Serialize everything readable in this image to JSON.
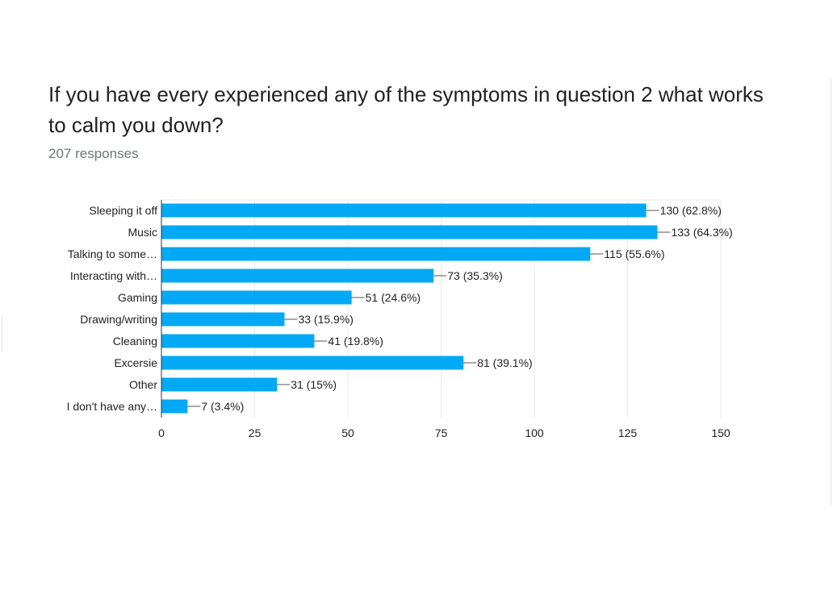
{
  "question": {
    "title": "If you have every experienced any of the symptoms in question 2 what works to calm you down?",
    "responses": "207 responses"
  },
  "colors": {
    "bar": "#03a9f4",
    "grid": "#e8e8e8",
    "axis": "#333333",
    "text": "#222222"
  },
  "chart_data": {
    "type": "bar",
    "orientation": "horizontal",
    "categories": [
      "Sleeping it off",
      "Music",
      "Talking to some…",
      "Interacting with…",
      "Gaming",
      "Drawing/writing",
      "Cleaning",
      "Excersie",
      "Other",
      "I don't have any…"
    ],
    "values": [
      130,
      133,
      115,
      73,
      51,
      33,
      41,
      81,
      31,
      7
    ],
    "value_labels": [
      "130 (62.8%)",
      "133 (64.3%)",
      "115 (55.6%)",
      "73 (35.3%)",
      "51 (24.6%)",
      "33 (15.9%)",
      "41 (19.8%)",
      "81 (39.1%)",
      "31 (15%)",
      "7 (3.4%)"
    ],
    "xticks": [
      "0",
      "25",
      "50",
      "75",
      "100",
      "125",
      "150"
    ],
    "xlim": [
      0,
      150
    ],
    "grid": true,
    "legend": "none"
  }
}
